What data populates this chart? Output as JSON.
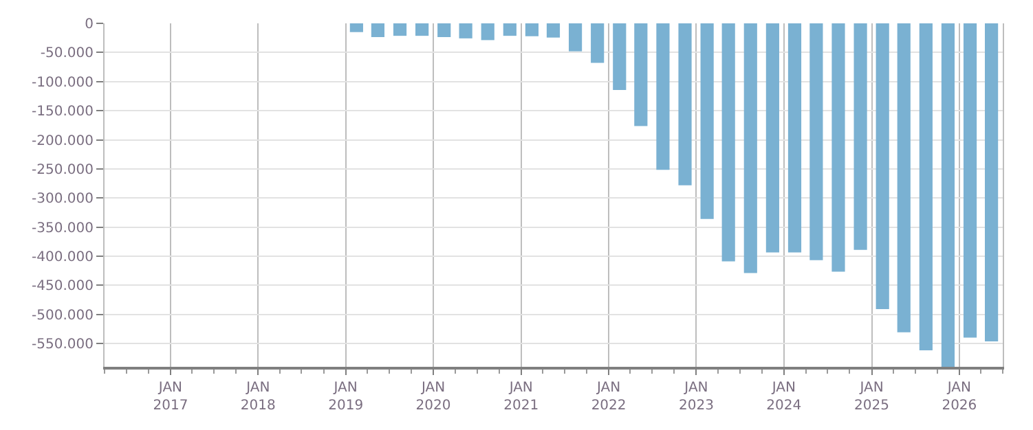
{
  "chart_data": {
    "type": "bar",
    "x": [
      "2019-02-15",
      "2019-05-15",
      "2019-08-15",
      "2019-11-15",
      "2020-02-15",
      "2020-05-15",
      "2020-08-15",
      "2020-11-15",
      "2021-02-15",
      "2021-05-15",
      "2021-08-15",
      "2021-11-15",
      "2022-02-15",
      "2022-05-15",
      "2022-08-15",
      "2022-11-15",
      "2023-02-15",
      "2023-05-15",
      "2023-08-15",
      "2023-11-15",
      "2024-02-15",
      "2024-05-15",
      "2024-08-15",
      "2024-11-15",
      "2025-02-15",
      "2025-05-15",
      "2025-08-15",
      "2025-11-15",
      "2026-02-15",
      "2026-05-15"
    ],
    "values": [
      -15000,
      -23600,
      -21400,
      -21400,
      -23600,
      -25800,
      -28800,
      -21400,
      -22100,
      -24400,
      -48000,
      -67900,
      -114400,
      -176400,
      -251700,
      -278300,
      -335900,
      -409000,
      -428900,
      -393500,
      -393500,
      -406800,
      -426700,
      -389100,
      -490900,
      -530800,
      -561800,
      -590000,
      -539700,
      -546300
    ],
    "color": "#7ab1d2",
    "ylim": [
      -590000,
      0
    ],
    "yticks": [
      {
        "value": 0,
        "label": "0"
      },
      {
        "value": -50000,
        "label": "-50.000"
      },
      {
        "value": -100000,
        "label": "-100.000"
      },
      {
        "value": -150000,
        "label": "-150.000"
      },
      {
        "value": -200000,
        "label": "-200.000"
      },
      {
        "value": -250000,
        "label": "-250.000"
      },
      {
        "value": -300000,
        "label": "-300.000"
      },
      {
        "value": -350000,
        "label": "-350.000"
      },
      {
        "value": -400000,
        "label": "-400.000"
      },
      {
        "value": -450000,
        "label": "-450.000"
      },
      {
        "value": -500000,
        "label": "-500.000"
      },
      {
        "value": -550000,
        "label": "-550.000"
      }
    ],
    "xlim": [
      "2016-04-01",
      "2026-07-01"
    ],
    "xticks": [
      {
        "value": "2017-01-01",
        "label": "JAN\n2017"
      },
      {
        "value": "2018-01-01",
        "label": "JAN\n2018"
      },
      {
        "value": "2019-01-01",
        "label": "JAN\n2019"
      },
      {
        "value": "2020-01-01",
        "label": "JAN\n2020"
      },
      {
        "value": "2021-01-01",
        "label": "JAN\n2021"
      },
      {
        "value": "2022-01-01",
        "label": "JAN\n2022"
      },
      {
        "value": "2023-01-01",
        "label": "JAN\n2023"
      },
      {
        "value": "2024-01-01",
        "label": "JAN\n2024"
      },
      {
        "value": "2025-01-01",
        "label": "JAN\n2025"
      },
      {
        "value": "2026-01-01",
        "label": "JAN\n2026"
      }
    ],
    "grid": true
  }
}
